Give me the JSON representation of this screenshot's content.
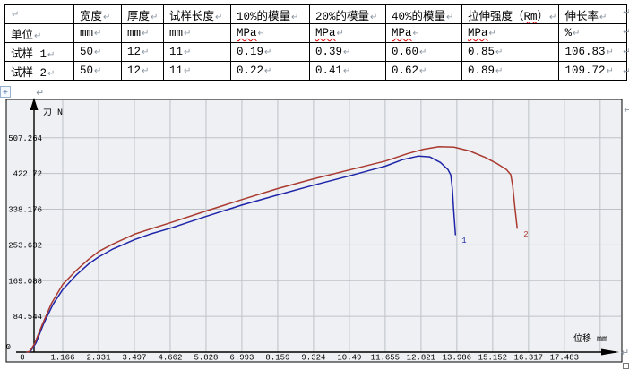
{
  "marks": {
    "pilcrow": "↵"
  },
  "table": {
    "rows": [
      [
        {
          "t": ""
        },
        {
          "t": "宽度"
        },
        {
          "t": "厚度"
        },
        {
          "t": "试样长度"
        },
        {
          "t": "10%的模量"
        },
        {
          "t": "20%的模量"
        },
        {
          "t": "40%的模量"
        },
        {
          "t": "拉伸强度（Rm）",
          "s": "Rm"
        },
        {
          "t": "伸长率"
        }
      ],
      [
        {
          "t": "单位"
        },
        {
          "t": "mm"
        },
        {
          "t": "mm"
        },
        {
          "t": "mm"
        },
        {
          "t": "MPa",
          "s": "MPa"
        },
        {
          "t": "MPa",
          "s": "MPa"
        },
        {
          "t": "MPa",
          "s": "MPa"
        },
        {
          "t": "MPa",
          "s": "MPa"
        },
        {
          "t": "%"
        }
      ],
      [
        {
          "t": "试样 1"
        },
        {
          "t": "50"
        },
        {
          "t": "12"
        },
        {
          "t": "11"
        },
        {
          "t": "0.19"
        },
        {
          "t": "0.39"
        },
        {
          "t": "0.60"
        },
        {
          "t": "0.85"
        },
        {
          "t": "106.83"
        }
      ],
      [
        {
          "t": "试样 2"
        },
        {
          "t": "50"
        },
        {
          "t": "12"
        },
        {
          "t": "11"
        },
        {
          "t": "0.22"
        },
        {
          "t": "0.41"
        },
        {
          "t": "0.62"
        },
        {
          "t": "0.89"
        },
        {
          "t": "109.72"
        }
      ]
    ]
  },
  "chart_data": {
    "type": "line",
    "title": "",
    "xlabel": "位移 mm",
    "ylabel": "力 N",
    "xlim": [
      0,
      18.648
    ],
    "ylim": [
      0,
      594
    ],
    "grid": true,
    "x_tick_labels": [
      "0",
      "1.166",
      "2.331",
      "3.497",
      "4.662",
      "5.828",
      "6.993",
      "8.159",
      "9.324",
      "10.49",
      "11.655",
      "12.821",
      "13.986",
      "15.152",
      "16.317",
      "17.483"
    ],
    "y_tick_labels": [
      "0",
      "84.544",
      "169.088",
      "253.632",
      "338.176",
      "422.72",
      "507.264"
    ],
    "series": [
      {
        "name": "1",
        "color": "#1f25a8",
        "points": [
          [
            0,
            0
          ],
          [
            0.12,
            2
          ],
          [
            0.3,
            22
          ],
          [
            0.55,
            68
          ],
          [
            0.85,
            113
          ],
          [
            1.166,
            148
          ],
          [
            1.6,
            182
          ],
          [
            2.0,
            208
          ],
          [
            2.331,
            225
          ],
          [
            2.8,
            244
          ],
          [
            3.497,
            266
          ],
          [
            4.0,
            279
          ],
          [
            4.662,
            293
          ],
          [
            5.828,
            321
          ],
          [
            6.993,
            348
          ],
          [
            8.159,
            372
          ],
          [
            9.324,
            395
          ],
          [
            10.49,
            417
          ],
          [
            11.2,
            431
          ],
          [
            11.655,
            440
          ],
          [
            12.2,
            455
          ],
          [
            12.74,
            464
          ],
          [
            13.1,
            462
          ],
          [
            13.45,
            449
          ],
          [
            13.7,
            432
          ],
          [
            13.79,
            419
          ],
          [
            13.84,
            385
          ],
          [
            13.88,
            340
          ],
          [
            13.94,
            278
          ]
        ]
      },
      {
        "name": "2",
        "color": "#aa3a30",
        "points": [
          [
            0,
            0
          ],
          [
            0.1,
            2
          ],
          [
            0.25,
            20
          ],
          [
            0.5,
            65
          ],
          [
            0.8,
            115
          ],
          [
            1.166,
            160
          ],
          [
            1.6,
            193
          ],
          [
            2.0,
            219
          ],
          [
            2.331,
            238
          ],
          [
            2.8,
            256
          ],
          [
            3.497,
            279
          ],
          [
            4.0,
            291
          ],
          [
            4.662,
            306
          ],
          [
            5.828,
            334
          ],
          [
            6.993,
            361
          ],
          [
            8.159,
            387
          ],
          [
            9.324,
            410
          ],
          [
            10.49,
            431
          ],
          [
            11.655,
            452
          ],
          [
            12.4,
            470
          ],
          [
            12.9,
            480
          ],
          [
            13.4,
            486
          ],
          [
            13.9,
            485
          ],
          [
            14.4,
            476
          ],
          [
            14.9,
            461
          ],
          [
            15.3,
            446
          ],
          [
            15.6,
            432
          ],
          [
            15.74,
            420
          ],
          [
            15.8,
            395
          ],
          [
            15.87,
            345
          ],
          [
            15.95,
            293
          ]
        ]
      }
    ],
    "colors": {
      "grid": "#bdc2c8",
      "plot_bg": "#eef0f3",
      "axis": "#000000"
    }
  }
}
